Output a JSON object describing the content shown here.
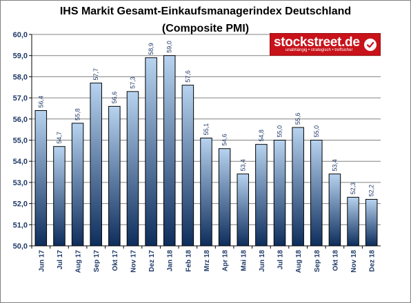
{
  "chart_data": {
    "type": "bar",
    "title_line1": "IHS Markit Gesamt-Einkaufsmanagerindex Deutschland",
    "title_line2": "(Composite PMI)",
    "categories": [
      "Jun 17",
      "Jul 17",
      "Aug 17",
      "Sep 17",
      "Okt 17",
      "Nov 17",
      "Dez 17",
      "Jan 18",
      "Feb 18",
      "Mrz 18",
      "Apr 18",
      "Mai 18",
      "Jun 18",
      "Jul 18",
      "Aug 18",
      "Sep 18",
      "Okt 18",
      "Nov 18",
      "Dez 18"
    ],
    "values": [
      56.4,
      54.7,
      55.8,
      57.7,
      56.6,
      57.3,
      58.9,
      59.0,
      57.6,
      55.1,
      54.6,
      53.4,
      54.8,
      55.0,
      55.6,
      55.0,
      53.4,
      52.3,
      52.2
    ],
    "data_labels": [
      "56,4",
      "54,7",
      "55,8",
      "57,7",
      "56,6",
      "57,3",
      "58,9",
      "59,0",
      "57,6",
      "55,1",
      "54,6",
      "53,4",
      "54,8",
      "55,0",
      "55,6",
      "55,0",
      "53,4",
      "52,3",
      "52,2"
    ],
    "yticks": [
      50,
      51,
      52,
      53,
      54,
      55,
      56,
      57,
      58,
      59,
      60
    ],
    "ytick_labels": [
      "50,0",
      "51,0",
      "52,0",
      "53,0",
      "54,0",
      "55,0",
      "56,0",
      "57,0",
      "58,0",
      "59,0",
      "60,0"
    ],
    "ylim": [
      50,
      60
    ],
    "xlabel": "",
    "ylabel": "",
    "grid": true,
    "legend": "none",
    "colors": {
      "bar_top": "#b7d3f0",
      "bar_bottom": "#0d2d5c",
      "bar_edge": "#000000",
      "grid": "#808080",
      "axis_text": "#1f3a68"
    }
  },
  "logo": {
    "name": "stockstreet.de",
    "tagline": "unabhängig • strategisch • treffsicher",
    "background": "#c8131a",
    "icon": "checkmark-circle-icon"
  }
}
